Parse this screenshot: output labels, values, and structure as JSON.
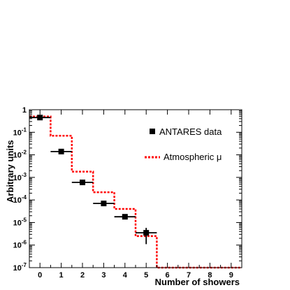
{
  "chart_data": {
    "type": "scatter",
    "title": "",
    "xlabel": "Number of showers",
    "ylabel": "Arbitrary units",
    "xlim": [
      -0.5,
      9.5
    ],
    "ylim": [
      1e-07,
      1
    ],
    "y_scale": "log",
    "grid": false,
    "legend_position": "top-right",
    "x_ticks": [
      "0",
      "1",
      "2",
      "3",
      "4",
      "5",
      "6",
      "7",
      "8",
      "9"
    ],
    "y_ticks": [
      {
        "value": 1,
        "base": "1",
        "exp": ""
      },
      {
        "value": 0.1,
        "base": "10",
        "exp": "-1"
      },
      {
        "value": 0.01,
        "base": "10",
        "exp": "-2"
      },
      {
        "value": 0.001,
        "base": "10",
        "exp": "-3"
      },
      {
        "value": 0.0001,
        "base": "10",
        "exp": "-4"
      },
      {
        "value": 1e-05,
        "base": "10",
        "exp": "-5"
      },
      {
        "value": 1e-06,
        "base": "10",
        "exp": "-6"
      },
      {
        "value": 1e-07,
        "base": "10",
        "exp": "-7"
      }
    ],
    "series": [
      {
        "name": "ANTARES data",
        "kind": "points",
        "color": "#000000",
        "x": [
          0,
          1,
          2,
          3,
          4,
          5
        ],
        "y": [
          0.45,
          0.014,
          0.0006,
          7e-05,
          1.8e-05,
          3.5e-06
        ],
        "y_low": [
          0.39,
          0.0124,
          0.00051,
          5.7e-05,
          1.38e-05,
          1.1e-06
        ],
        "y_high": [
          0.51,
          0.0156,
          0.00069,
          8.3e-05,
          2.22e-05,
          5.8e-06
        ]
      },
      {
        "name": "Atmospheric μ",
        "kind": "histogram",
        "color": "#ff0000",
        "x": [
          0,
          1,
          2,
          3,
          4,
          5,
          6,
          7,
          8,
          9
        ],
        "y": [
          0.5,
          0.07,
          0.0018,
          0.00022,
          4e-05,
          2.5e-06,
          1e-07,
          1e-07,
          1e-07,
          1e-07
        ]
      }
    ]
  }
}
